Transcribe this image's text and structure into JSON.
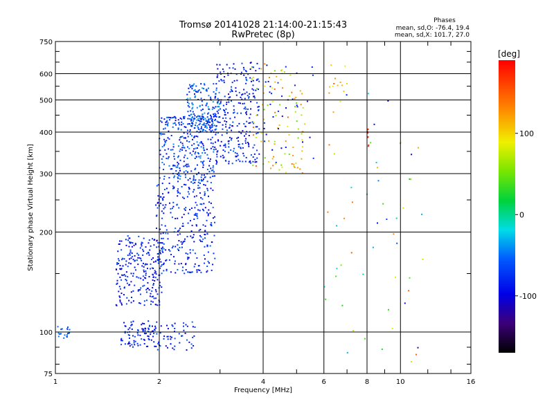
{
  "title_line1": "Tromsø 20141028 21:14:00-21:15:43",
  "title_line2": "RwPretec (8p)",
  "stats": {
    "heading": "Phases",
    "line_o": "mean, sd,O: -76.4, 19.4",
    "line_x": "mean, sd,X: 101.7, 27.0"
  },
  "colorbar": {
    "label": "[deg]",
    "ticks": [
      "100",
      "0",
      "-100"
    ],
    "tick_values": [
      100,
      0,
      -100
    ],
    "range": [
      -170,
      190
    ]
  },
  "colors": {
    "background": "#ffffff",
    "axes": "#000000"
  },
  "chart_data": {
    "type": "scatter",
    "title": "Tromsø 20141028 21:14:00-21:15:43",
    "subtitle": "RwPretec (8p)",
    "xlabel": "Frequency [MHz]",
    "ylabel": "Stationary phase Virtual Height [km]",
    "xscale": "log",
    "yscale": "log",
    "xlim": [
      1,
      16
    ],
    "ylim": [
      75,
      750
    ],
    "xticks": [
      "1",
      "2",
      "4",
      "6",
      "8",
      "10",
      "16"
    ],
    "xtick_values": [
      1,
      2,
      4,
      6,
      8,
      10,
      16
    ],
    "yticks": [
      "750",
      "600",
      "500",
      "400",
      "300",
      "200",
      "100",
      "75"
    ],
    "ytick_values": [
      750,
      600,
      500,
      400,
      300,
      200,
      100,
      75
    ],
    "grid": true,
    "color_by": "phase [deg]",
    "clusters": [
      {
        "f": [
          1.0,
          1.1
        ],
        "h": [
          95,
          105
        ],
        "phase": [
          -70,
          -40
        ],
        "n": 20
      },
      {
        "f": [
          1.55,
          1.95
        ],
        "h": [
          90,
          108
        ],
        "phase": [
          -110,
          -60
        ],
        "n": 90
      },
      {
        "f": [
          1.95,
          2.55
        ],
        "h": [
          88,
          108
        ],
        "phase": [
          -110,
          -50
        ],
        "n": 55
      },
      {
        "f": [
          1.5,
          2.05
        ],
        "h": [
          120,
          195
        ],
        "phase": [
          -110,
          -60
        ],
        "n": 240
      },
      {
        "f": [
          1.95,
          2.9
        ],
        "h": [
          150,
          280
        ],
        "phase": [
          -110,
          -50
        ],
        "n": 280
      },
      {
        "f": [
          2.0,
          2.9
        ],
        "h": [
          280,
          450
        ],
        "phase": [
          -105,
          -40
        ],
        "n": 330
      },
      {
        "f": [
          2.4,
          3.0
        ],
        "h": [
          400,
          560
        ],
        "phase": [
          -100,
          -30
        ],
        "n": 170
      },
      {
        "f": [
          2.9,
          3.9
        ],
        "h": [
          320,
          650
        ],
        "phase": [
          -110,
          -55
        ],
        "n": 280
      },
      {
        "f": [
          3.7,
          5.3
        ],
        "h": [
          300,
          650
        ],
        "phase": [
          40,
          150
        ],
        "n": 100
      },
      {
        "f": [
          4.0,
          5.6
        ],
        "h": [
          300,
          650
        ],
        "phase": [
          -110,
          -70
        ],
        "n": 35
      },
      {
        "f": [
          6.2,
          7.1
        ],
        "h": [
          520,
          640
        ],
        "phase": [
          60,
          150
        ],
        "n": 12
      },
      {
        "f": [
          8.0,
          8.1
        ],
        "h": [
          360,
          410
        ],
        "phase": [
          160,
          180
        ],
        "n": 8
      },
      {
        "f": [
          6.0,
          12.0
        ],
        "h": [
          80,
          560
        ],
        "phase": [
          -120,
          150
        ],
        "n": 55
      }
    ]
  }
}
